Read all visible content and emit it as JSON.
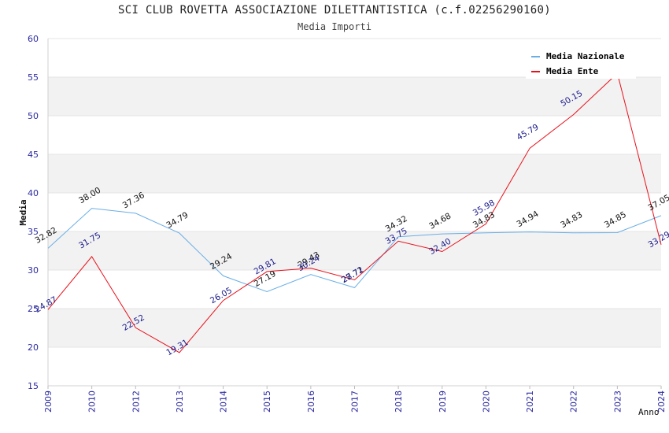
{
  "header": {
    "title": "SCI CLUB ROVETTA ASSOCIAZIONE DILETTANTISTICA (c.f.02256290160)",
    "subtitle": "Media Importi"
  },
  "colors": {
    "nazionale": "#6aaee6",
    "ente": "#e8101a",
    "band": "#f2f2f2",
    "tick_text": "#2a2aa0"
  },
  "chart_data": {
    "type": "line",
    "title": "SCI CLUB ROVETTA ASSOCIAZIONE DILETTANTISTICA (c.f.02256290160)",
    "subtitle": "Media Importi",
    "xlabel": "Anno",
    "ylabel": "Media",
    "ylim": [
      15,
      60
    ],
    "yticks": [
      15,
      20,
      25,
      30,
      35,
      40,
      45,
      50,
      55,
      60
    ],
    "categories": [
      "2009",
      "2010",
      "2012",
      "2013",
      "2014",
      "2015",
      "2016",
      "2017",
      "2018",
      "2019",
      "2020",
      "2021",
      "2022",
      "2023",
      "2024"
    ],
    "series": [
      {
        "name": "Media Nazionale",
        "values": [
          32.82,
          38.0,
          37.36,
          34.79,
          29.24,
          27.19,
          29.43,
          27.71,
          34.32,
          34.68,
          34.83,
          34.94,
          34.83,
          34.85,
          37.05
        ],
        "labels": [
          "32.82",
          "38.00",
          "37.36",
          "34.79",
          "29.24",
          "27.19",
          "29.43",
          "27.71",
          "34.32",
          "34.68",
          "34.83",
          "34.94",
          "34.83",
          "34.85",
          "37.05"
        ]
      },
      {
        "name": "Media Ente",
        "values": [
          24.87,
          31.75,
          22.52,
          19.31,
          26.05,
          29.81,
          30.24,
          28.72,
          33.75,
          32.4,
          35.98,
          45.79,
          50.15,
          55.5,
          33.29
        ],
        "labels": [
          "24.87",
          "31.75",
          "22.52",
          "19.31",
          "26.05",
          "29.81",
          "30.24",
          "28.72",
          "33.75",
          "32.40",
          "35.98",
          "45.79",
          "50.15",
          "",
          "33.29"
        ]
      }
    ],
    "grid": true,
    "legend_position": "top-right"
  }
}
